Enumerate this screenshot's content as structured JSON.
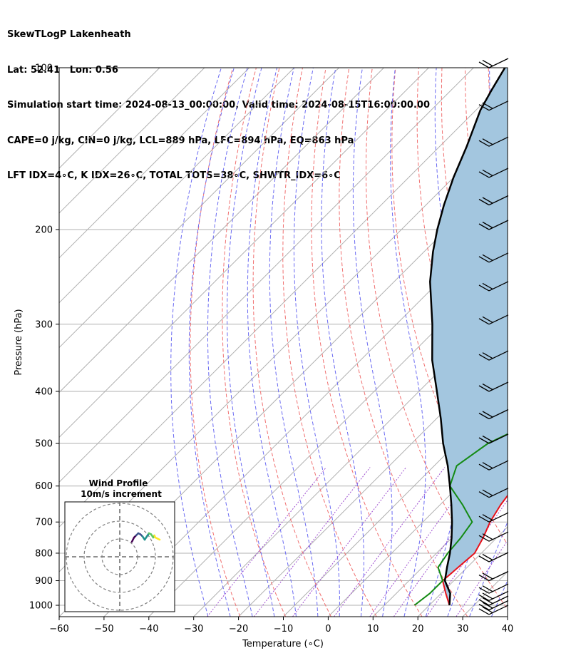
{
  "header": {
    "lines": [
      "SkewTLogP Lakenheath",
      "Lat: 52.41   Lon: 0.56",
      "Simulation start time: 2024-08-13_00:00:00, Valid time: 2024-08-15T16:00:00.00",
      "CAPE=0 j/kg, CIN=0 j/kg, LCL=889 hPa, LFC=894 hPa, EQ=863 hPa",
      "LFT IDX=4∘C, K IDX=26∘C, TOTAL TOTS=38∘C, SHWTR_IDX=6∘C"
    ]
  },
  "chart_data": {
    "type": "line",
    "title": "SkewTLogP Lakenheath",
    "xlabel": "Temperature (∘C)",
    "ylabel": "Pressure (hPa)",
    "xlim": [
      -60,
      40
    ],
    "ylim": [
      1050,
      100
    ],
    "yscale": "log",
    "skew": true,
    "grid": true,
    "x_ticks": [
      -60,
      -50,
      -40,
      -30,
      -20,
      -10,
      0,
      10,
      20,
      30,
      40
    ],
    "y_ticks": [
      100,
      200,
      300,
      400,
      500,
      600,
      700,
      800,
      900,
      1000
    ],
    "colors": {
      "temperature": "#e8111a",
      "dewpoint": "#138a12",
      "parcel": "#000000",
      "cape_fill": "#a3c6df",
      "dry_adiabats": "#f07070",
      "moist_adiabats": "#6a6af2",
      "mixing_ratio": "#9f4fd0",
      "isotherms": "#b0b0b0"
    },
    "series": [
      {
        "role": "temperature",
        "points": [
          [
            24.5,
            1000
          ],
          [
            21,
            950
          ],
          [
            17.5,
            900
          ],
          [
            18,
            850
          ],
          [
            18.5,
            800
          ],
          [
            17,
            750
          ],
          [
            15,
            700
          ],
          [
            13.5,
            650
          ],
          [
            12.5,
            600
          ],
          [
            12,
            550
          ],
          [
            12,
            500
          ],
          [
            10.5,
            450
          ],
          [
            9,
            400
          ],
          [
            7,
            350
          ],
          [
            4,
            300
          ],
          [
            -3,
            250
          ],
          [
            -6,
            220
          ],
          [
            -6,
            200
          ],
          [
            -5,
            180
          ],
          [
            -2,
            160
          ],
          [
            2,
            140
          ],
          [
            6,
            120
          ],
          [
            9,
            110
          ],
          [
            12,
            100
          ]
        ]
      },
      {
        "role": "dewpoint",
        "points": [
          [
            16.7,
            1000
          ],
          [
            17.5,
            950
          ],
          [
            17.5,
            900
          ],
          [
            13.5,
            850
          ],
          [
            12.5,
            800
          ],
          [
            12,
            750
          ],
          [
            11,
            700
          ],
          [
            5,
            650
          ],
          [
            -2,
            600
          ],
          [
            -5,
            550
          ],
          [
            -3,
            500
          ],
          [
            3,
            450
          ],
          [
            4.5,
            400
          ],
          [
            1,
            350
          ],
          [
            -3,
            300
          ],
          [
            -14,
            270
          ],
          [
            -15,
            240
          ],
          [
            -14,
            220
          ],
          [
            -21,
            180
          ],
          [
            -25,
            160
          ],
          [
            -23,
            140
          ],
          [
            -18,
            120
          ],
          [
            -16,
            110
          ],
          [
            -12,
            100
          ]
        ]
      },
      {
        "role": "parcel",
        "points": [
          [
            24.5,
            1000
          ],
          [
            22,
            950
          ],
          [
            18,
            900
          ],
          [
            15.5,
            850
          ],
          [
            13,
            800
          ],
          [
            10,
            750
          ],
          [
            6.5,
            700
          ],
          [
            2.5,
            650
          ],
          [
            -2,
            600
          ],
          [
            -7,
            550
          ],
          [
            -13,
            500
          ],
          [
            -19,
            450
          ],
          [
            -26,
            400
          ],
          [
            -34,
            350
          ],
          [
            -42,
            300
          ],
          [
            -52,
            250
          ],
          [
            -58,
            220
          ],
          [
            -62,
            200
          ],
          [
            -66,
            180
          ],
          [
            -70,
            160
          ],
          [
            -74,
            140
          ],
          [
            -79,
            120
          ],
          [
            -81,
            110
          ],
          [
            -83,
            100
          ]
        ]
      }
    ],
    "wind_barbs": {
      "color": "#000000",
      "pressures": [
        100,
        120,
        140,
        160,
        180,
        200,
        230,
        260,
        300,
        350,
        400,
        450,
        500,
        560,
        630,
        700,
        760,
        830,
        900,
        950,
        980,
        1000,
        1020,
        1040
      ]
    },
    "hodograph": {
      "title": "Wind Profile",
      "subtitle": "10m/s increment",
      "rings_ms": [
        10,
        20,
        30
      ],
      "colormap": [
        "#440154",
        "#3b528b",
        "#21918c",
        "#5ec962",
        "#fde725"
      ],
      "uv": [
        [
          -9,
          -1
        ],
        [
          -8,
          1
        ],
        [
          -7,
          2
        ],
        [
          -6,
          3
        ],
        [
          -5,
          2.5
        ],
        [
          -4,
          1.5
        ],
        [
          -3,
          0
        ],
        [
          -2,
          1.5
        ],
        [
          -1,
          3
        ],
        [
          0,
          2.5
        ],
        [
          1,
          1
        ],
        [
          1.5,
          2
        ],
        [
          2,
          1
        ],
        [
          3,
          0.5
        ],
        [
          4,
          0
        ]
      ]
    }
  }
}
